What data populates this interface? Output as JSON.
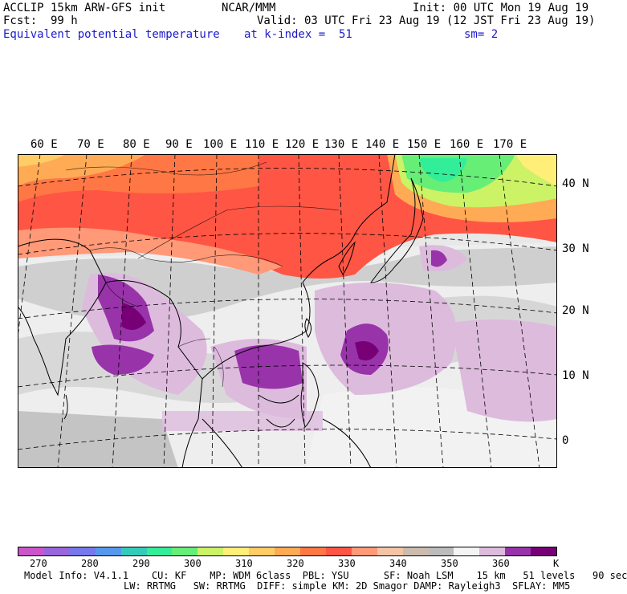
{
  "header": {
    "model": "ACCLIP 15km ARW-GFS init",
    "org": "NCAR/MMM",
    "init": "Init: 00 UTC Mon 19 Aug 19",
    "fcst": "Fcst:  99 h",
    "valid": "Valid: 03 UTC Fri 23 Aug 19 (12 JST Fri 23 Aug 19)",
    "field": "Equivalent potential temperature",
    "level": "at k-index =  51",
    "smooth": "sm= 2"
  },
  "map": {
    "lon_labels": [
      "60 E",
      "70 E",
      "80 E",
      "90 E",
      "100 E",
      "110 E",
      "120 E",
      "130 E",
      "140 E",
      "150 E",
      "160 E",
      "170 E"
    ],
    "lat_labels": [
      "40 N",
      "30 N",
      "20 N",
      "10 N",
      "0"
    ]
  },
  "colorbar": {
    "colors": [
      "#cc55cc",
      "#9966dd",
      "#7777ee",
      "#5599ee",
      "#33ccbb",
      "#33ee99",
      "#66ee77",
      "#ccf266",
      "#ffee77",
      "#ffcc66",
      "#ffaa55",
      "#ff7744",
      "#ff5544",
      "#ff9977",
      "#f4c4a4",
      "#ccbcb0",
      "#bcbcbc",
      "#f4f4f4",
      "#ddbbdd",
      "#9933aa",
      "#770077"
    ],
    "tick_labels": [
      "270",
      "280",
      "290",
      "300",
      "310",
      "320",
      "330",
      "340",
      "350",
      "360"
    ],
    "unit": "K"
  },
  "footer": {
    "line1": "Model Info: V4.1.1    CU: KF    MP: WDM 6class  PBL: YSU      SF: Noah LSM    15 km   51 levels   90 sec",
    "line2": "LW: RRTMG   SW: RRTMG  DIFF: simple KM: 2D Smagor DAMP: Rayleigh3  SFLAY: MM5"
  }
}
